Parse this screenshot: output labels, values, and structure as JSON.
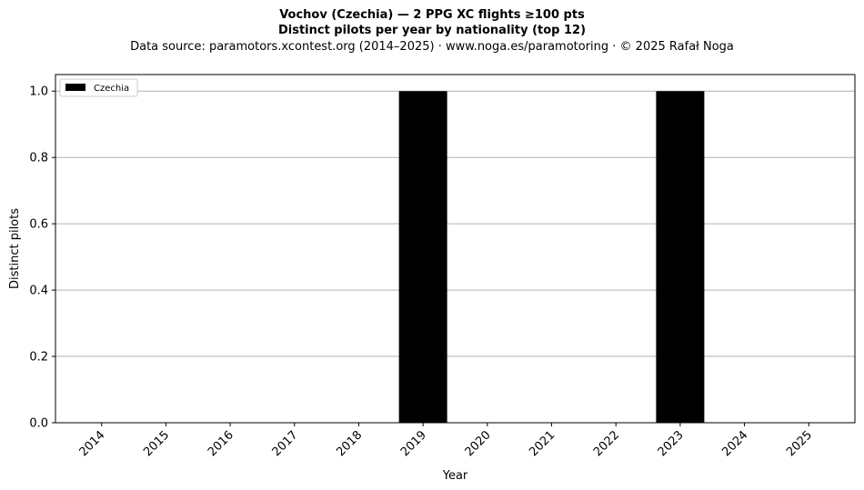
{
  "chart_data": {
    "type": "bar",
    "title": "Vochov (Czechia)  —  2 PPG XC flights ≥100 pts",
    "subtitle": "Distinct pilots per year by nationality (top 12)",
    "source": "Data source: paramotors.xcontest.org (2014–2025)  ·  www.noga.es/paramotoring  ·  © 2025 Rafał Noga",
    "xlabel": "Year",
    "ylabel": "Distinct pilots",
    "categories": [
      "2014",
      "2015",
      "2016",
      "2017",
      "2018",
      "2019",
      "2020",
      "2021",
      "2022",
      "2023",
      "2024",
      "2025"
    ],
    "series": [
      {
        "name": "Czechia",
        "color": "#000000",
        "values": [
          0,
          0,
          0,
          0,
          0,
          1,
          0,
          0,
          0,
          1,
          0,
          0
        ]
      }
    ],
    "ylim": [
      0,
      1.05
    ],
    "yticks": [
      "0.0",
      "0.2",
      "0.4",
      "0.6",
      "0.8",
      "1.0"
    ],
    "grid": "y",
    "legend": "top-left"
  }
}
